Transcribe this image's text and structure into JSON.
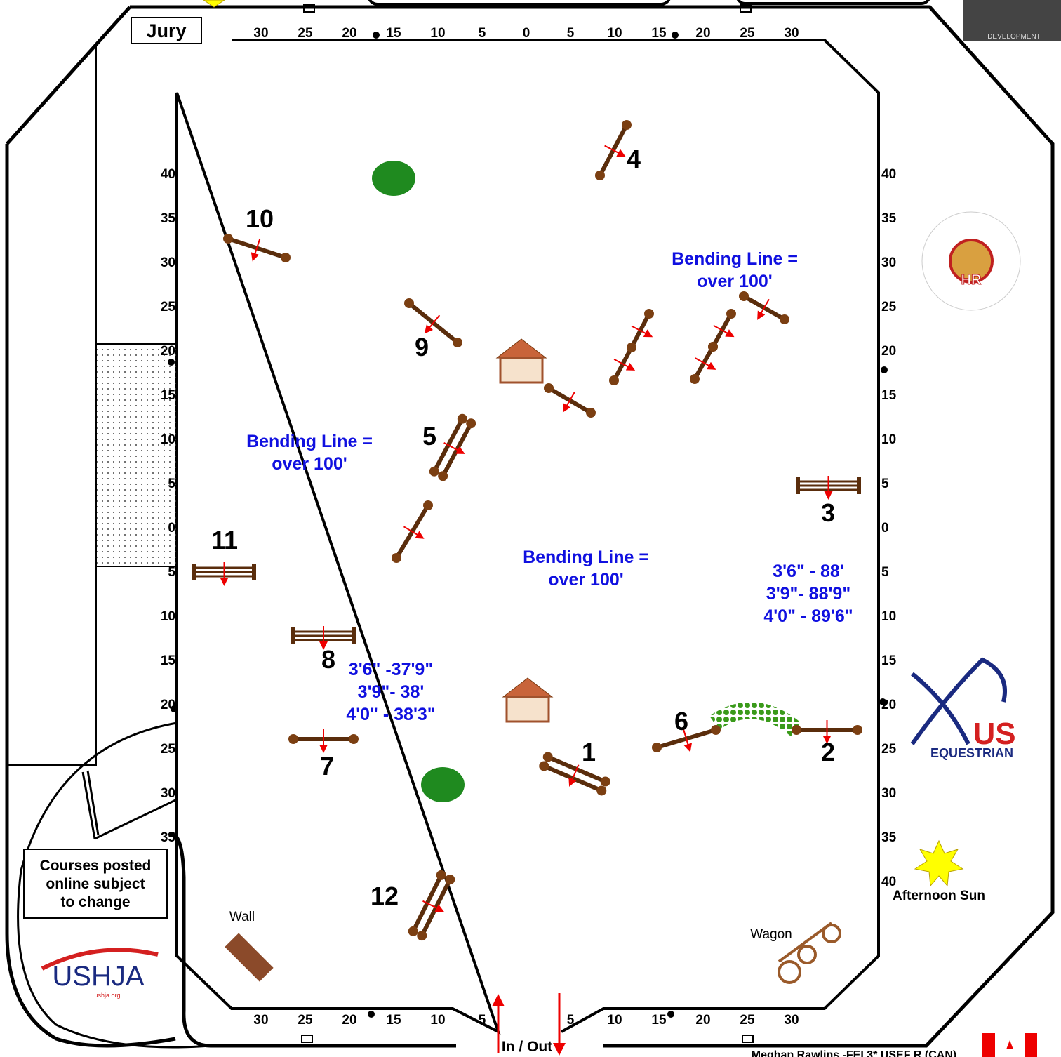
{
  "jury": "Jury",
  "rulers": {
    "top": [
      30,
      25,
      20,
      15,
      10,
      5,
      0,
      5,
      10,
      15,
      20,
      25,
      30
    ],
    "bottom": [
      30,
      25,
      20,
      15,
      10,
      5,
      5,
      10,
      15,
      20,
      25,
      30
    ],
    "left": [
      40,
      35,
      30,
      25,
      20,
      15,
      10,
      5,
      0,
      5,
      10,
      15,
      20,
      25,
      30,
      35
    ],
    "right": [
      40,
      35,
      30,
      25,
      20,
      15,
      10,
      5,
      0,
      5,
      10,
      15,
      20,
      25,
      30,
      35,
      40
    ]
  },
  "fence_numbers": [
    "1",
    "2",
    "3",
    "4",
    "5",
    "6",
    "7",
    "8",
    "9",
    "10",
    "11",
    "12"
  ],
  "bending_notes": [
    [
      "Bending Line =",
      "over 100'"
    ],
    [
      "Bending Line =",
      "over 100'"
    ],
    [
      "Bending Line =",
      "over 100'"
    ]
  ],
  "distances_right": [
    "3'6\" - 88'",
    "3'9\"- 88'9\"",
    "4'0\" - 89'6\""
  ],
  "distances_left": [
    "3'6\" -37'9\"",
    "3'9\"- 38'",
    "4'0\" - 38'3\""
  ],
  "courses_notice": [
    "Courses posted",
    "online subject",
    "to change"
  ],
  "wall": "Wall",
  "wagon": "Wagon",
  "sun": "Afternoon Sun",
  "gate": "In / Out",
  "designer": "Meghan Rawlins -FEI 3* USEF R (CAN)",
  "logos": {
    "ushja": "USHJA",
    "ushja_url": "ushja.org",
    "us": "US",
    "equestrian": "EQUESTRIAN",
    "development": "DEVELOPMENT",
    "wchr": "HR"
  }
}
